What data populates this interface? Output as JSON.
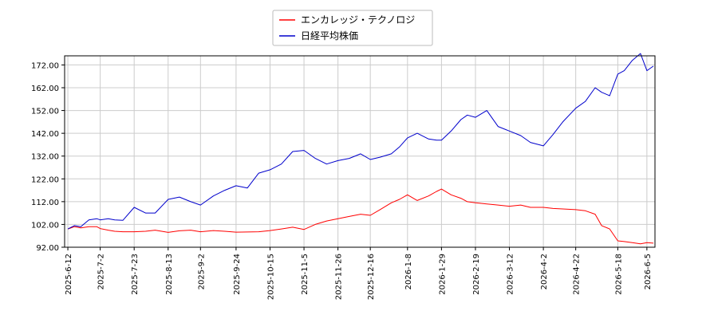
{
  "chart_data": {
    "type": "line",
    "legend_position": "top-center",
    "grid": true,
    "ylim": [
      92.0,
      176.0
    ],
    "y_ticks": [
      "92.00",
      "102.00",
      "112.00",
      "122.00",
      "132.00",
      "142.00",
      "152.00",
      "162.00",
      "172.00"
    ],
    "x_ticks": [
      "2025-6-12",
      "2025-7-2",
      "2025-7-23",
      "2025-8-13",
      "2025-9-2",
      "2025-9-24",
      "2025-10-15",
      "2025-11-5",
      "2025-11-26",
      "2025-12-16",
      "2026-1-8",
      "2026-1-29",
      "2026-2-19",
      "2026-3-12",
      "2026-4-2",
      "2026-4-22",
      "2026-5-18",
      "2026-6-5"
    ],
    "series": [
      {
        "name": "エンカレッジ・テクノロジ",
        "color": "#ff0000",
        "points": [
          [
            "2025-6-12",
            100.0
          ],
          [
            "2025-6-16",
            101.0
          ],
          [
            "2025-6-20",
            100.5
          ],
          [
            "2025-6-25",
            101.0
          ],
          [
            "2025-6-30",
            101.0
          ],
          [
            "2025-7-2",
            100.2
          ],
          [
            "2025-7-7",
            99.5
          ],
          [
            "2025-7-11",
            99.0
          ],
          [
            "2025-7-16",
            98.8
          ],
          [
            "2025-7-23",
            98.8
          ],
          [
            "2025-7-30",
            99.0
          ],
          [
            "2025-8-5",
            99.5
          ],
          [
            "2025-8-13",
            98.5
          ],
          [
            "2025-8-20",
            99.2
          ],
          [
            "2025-8-27",
            99.5
          ],
          [
            "2025-9-2",
            98.8
          ],
          [
            "2025-9-10",
            99.3
          ],
          [
            "2025-9-17",
            99.0
          ],
          [
            "2025-9-24",
            98.6
          ],
          [
            "2025-10-1",
            98.7
          ],
          [
            "2025-10-8",
            98.8
          ],
          [
            "2025-10-15",
            99.3
          ],
          [
            "2025-10-22",
            100.0
          ],
          [
            "2025-10-29",
            100.8
          ],
          [
            "2025-11-5",
            99.8
          ],
          [
            "2025-11-12",
            102.0
          ],
          [
            "2025-11-19",
            103.5
          ],
          [
            "2025-11-26",
            104.5
          ],
          [
            "2025-12-3",
            105.5
          ],
          [
            "2025-12-10",
            106.5
          ],
          [
            "2025-12-16",
            106.0
          ],
          [
            "2025-12-22",
            108.5
          ],
          [
            "2025-12-29",
            111.5
          ],
          [
            "2026-1-3",
            113.0
          ],
          [
            "2026-1-8",
            115.0
          ],
          [
            "2026-1-14",
            112.5
          ],
          [
            "2026-1-21",
            114.5
          ],
          [
            "2026-1-26",
            116.5
          ],
          [
            "2026-1-29",
            117.5
          ],
          [
            "2026-2-4",
            115.0
          ],
          [
            "2026-2-10",
            113.5
          ],
          [
            "2026-2-14",
            112.0
          ],
          [
            "2026-2-19",
            111.5
          ],
          [
            "2026-2-26",
            111.0
          ],
          [
            "2026-3-5",
            110.5
          ],
          [
            "2026-3-12",
            110.0
          ],
          [
            "2026-3-19",
            110.5
          ],
          [
            "2026-3-25",
            109.5
          ],
          [
            "2026-4-2",
            109.5
          ],
          [
            "2026-4-8",
            109.0
          ],
          [
            "2026-4-14",
            108.8
          ],
          [
            "2026-4-22",
            108.5
          ],
          [
            "2026-4-28",
            108.0
          ],
          [
            "2026-5-4",
            106.5
          ],
          [
            "2026-5-8",
            101.5
          ],
          [
            "2026-5-13",
            100.0
          ],
          [
            "2026-5-18",
            94.8
          ],
          [
            "2026-5-22",
            94.5
          ],
          [
            "2026-5-27",
            94.0
          ],
          [
            "2026-6-1",
            93.5
          ],
          [
            "2026-6-5",
            94.0
          ],
          [
            "2026-6-9",
            93.8
          ]
        ]
      },
      {
        "name": "日経平均株価",
        "color": "#0000cc",
        "points": [
          [
            "2025-6-12",
            100.0
          ],
          [
            "2025-6-16",
            101.5
          ],
          [
            "2025-6-20",
            101.0
          ],
          [
            "2025-6-25",
            104.0
          ],
          [
            "2025-6-30",
            104.5
          ],
          [
            "2025-7-2",
            104.0
          ],
          [
            "2025-7-7",
            104.5
          ],
          [
            "2025-7-11",
            104.0
          ],
          [
            "2025-7-16",
            103.8
          ],
          [
            "2025-7-23",
            109.5
          ],
          [
            "2025-7-30",
            107.0
          ],
          [
            "2025-8-5",
            107.0
          ],
          [
            "2025-8-13",
            113.0
          ],
          [
            "2025-8-20",
            114.0
          ],
          [
            "2025-8-27",
            112.0
          ],
          [
            "2025-9-2",
            110.5
          ],
          [
            "2025-9-10",
            114.5
          ],
          [
            "2025-9-17",
            117.0
          ],
          [
            "2025-9-24",
            119.0
          ],
          [
            "2025-10-1",
            118.0
          ],
          [
            "2025-10-8",
            124.5
          ],
          [
            "2025-10-15",
            126.0
          ],
          [
            "2025-10-22",
            128.5
          ],
          [
            "2025-10-29",
            134.0
          ],
          [
            "2025-11-5",
            134.5
          ],
          [
            "2025-11-12",
            131.0
          ],
          [
            "2025-11-19",
            128.5
          ],
          [
            "2025-11-26",
            130.0
          ],
          [
            "2025-12-3",
            131.0
          ],
          [
            "2025-12-10",
            133.0
          ],
          [
            "2025-12-16",
            130.5
          ],
          [
            "2025-12-22",
            131.5
          ],
          [
            "2025-12-29",
            133.0
          ],
          [
            "2026-1-3",
            136.0
          ],
          [
            "2026-1-8",
            140.0
          ],
          [
            "2026-1-14",
            142.0
          ],
          [
            "2026-1-21",
            139.5
          ],
          [
            "2026-1-26",
            139.0
          ],
          [
            "2026-1-29",
            139.0
          ],
          [
            "2026-2-4",
            143.0
          ],
          [
            "2026-2-10",
            148.0
          ],
          [
            "2026-2-14",
            150.0
          ],
          [
            "2026-2-19",
            149.0
          ],
          [
            "2026-2-26",
            152.0
          ],
          [
            "2026-3-5",
            145.0
          ],
          [
            "2026-3-12",
            143.0
          ],
          [
            "2026-3-19",
            141.0
          ],
          [
            "2026-3-25",
            138.0
          ],
          [
            "2026-4-2",
            136.5
          ],
          [
            "2026-4-8",
            141.5
          ],
          [
            "2026-4-14",
            147.0
          ],
          [
            "2026-4-22",
            153.0
          ],
          [
            "2026-4-28",
            156.0
          ],
          [
            "2026-5-4",
            162.0
          ],
          [
            "2026-5-8",
            160.0
          ],
          [
            "2026-5-13",
            158.5
          ],
          [
            "2026-5-18",
            168.0
          ],
          [
            "2026-5-22",
            169.5
          ],
          [
            "2026-5-27",
            174.0
          ],
          [
            "2026-6-1",
            177.0
          ],
          [
            "2026-6-5",
            169.5
          ],
          [
            "2026-6-9",
            171.5
          ]
        ]
      }
    ]
  }
}
